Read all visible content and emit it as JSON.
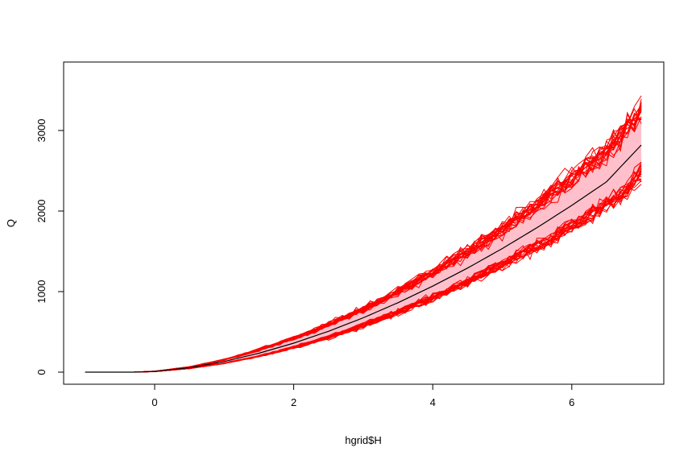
{
  "chart_data": {
    "type": "line",
    "title": "",
    "xlabel": "hgrid$H",
    "ylabel": "Q",
    "xlim": [
      -1,
      7
    ],
    "ylim": [
      0,
      3650
    ],
    "xticks": [
      "0",
      "2",
      "4",
      "6"
    ],
    "yticks": [
      "0",
      "1000",
      "2000",
      "3000"
    ],
    "grid": false,
    "x": [
      -1,
      -0.5,
      -0.3,
      0,
      0.5,
      1,
      1.5,
      2,
      2.5,
      3,
      3.5,
      4,
      4.5,
      5,
      5.5,
      6,
      6.5,
      7
    ],
    "series": [
      {
        "role": "median",
        "color": "#000000",
        "values": [
          0,
          0,
          0,
          9,
          55,
          132,
          235,
          360,
          507,
          675,
          862,
          1068,
          1292,
          1534,
          1794,
          2070,
          2363,
          2820
        ]
      },
      {
        "role": "band-lower",
        "color": "#ffc0cb",
        "values": [
          0,
          0,
          0,
          7,
          46,
          112,
          200,
          310,
          440,
          590,
          755,
          940,
          1140,
          1355,
          1590,
          1840,
          2100,
          2480
        ]
      },
      {
        "role": "band-upper",
        "color": "#ffc0cb",
        "values": [
          0,
          0,
          0,
          11,
          64,
          152,
          272,
          415,
          580,
          770,
          985,
          1220,
          1475,
          1750,
          2045,
          2360,
          2700,
          3180
        ]
      }
    ],
    "simulation_color": "#ff0000"
  }
}
